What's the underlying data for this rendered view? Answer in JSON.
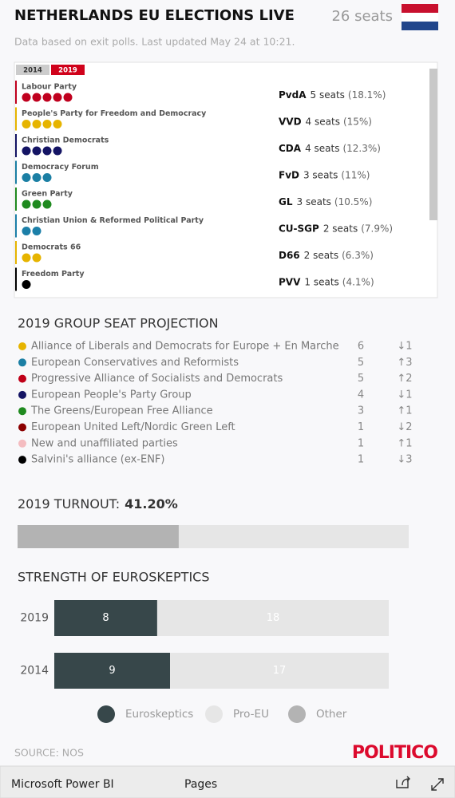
{
  "header": {
    "title": "NETHERLANDS EU ELECTIONS LIVE",
    "seats": "26 seats",
    "subtitle": "Data based on exit polls. Last updated May 24 at 10:21."
  },
  "tabs": [
    "2014",
    "2019"
  ],
  "parties": [
    {
      "name": "Labour Party",
      "abbr": "PvdA",
      "seats": 5,
      "seats_text": "5 seats",
      "share": "(18.1%)",
      "color": "#c0001e"
    },
    {
      "name": "People's Party for Freedom and Democracy",
      "abbr": "VVD",
      "seats": 4,
      "seats_text": "4 seats",
      "share": "(15%)",
      "color": "#e6b400"
    },
    {
      "name": "Christian Democrats",
      "abbr": "CDA",
      "seats": 4,
      "seats_text": "4 seats",
      "share": "(12.3%)",
      "color": "#141464"
    },
    {
      "name": "Democracy Forum",
      "abbr": "FvD",
      "seats": 3,
      "seats_text": "3 seats",
      "share": "(11%)",
      "color": "#1b7fa4"
    },
    {
      "name": "Green Party",
      "abbr": "GL",
      "seats": 3,
      "seats_text": "3 seats",
      "share": "(10.5%)",
      "color": "#1f8a1f"
    },
    {
      "name": "Christian Union & Reformed Political Party",
      "abbr": "CU-SGP",
      "seats": 2,
      "seats_text": "2 seats",
      "share": "(7.9%)",
      "color": "#1c7fa8"
    },
    {
      "name": "Democrats 66",
      "abbr": "D66",
      "seats": 2,
      "seats_text": "2 seats",
      "share": "(6.3%)",
      "color": "#e6b400"
    },
    {
      "name": "Freedom Party",
      "abbr": "PVV",
      "seats": 1,
      "seats_text": "1 seats",
      "share": "(4.1%)",
      "color": "#000000"
    }
  ],
  "projection": {
    "title": "2019 GROUP SEAT PROJECTION",
    "rows": [
      {
        "name": "Alliance of Liberals and Democrats for Europe + En Marche",
        "color": "#e6b400",
        "seats": 6,
        "change": "↓1"
      },
      {
        "name": "European Conservatives and Reformists",
        "color": "#1b7fa4",
        "seats": 5,
        "change": "↑3"
      },
      {
        "name": "Progressive Alliance of Socialists and Democrats",
        "color": "#c00018",
        "seats": 5,
        "change": "↑2"
      },
      {
        "name": "European People's Party Group",
        "color": "#141464",
        "seats": 4,
        "change": "↓1"
      },
      {
        "name": "The Greens/European Free Alliance",
        "color": "#1f8a1f",
        "seats": 3,
        "change": "↑1"
      },
      {
        "name": "European United Left/Nordic Green Left",
        "color": "#8b0000",
        "seats": 1,
        "change": "↓2"
      },
      {
        "name": "New and unaffiliated parties",
        "color": "#f4bcc0",
        "seats": 1,
        "change": "↑1"
      },
      {
        "name": "Salvini's alliance (ex-ENF)",
        "color": "#000000",
        "seats": 1,
        "change": "↓3"
      }
    ]
  },
  "turnout": {
    "title": "2019 TURNOUT:",
    "value": 41.2,
    "label": "41.20%",
    "xlim": [
      0,
      100
    ],
    "color": "#b3b3b3",
    "track": "#e6e6e6"
  },
  "chart_data": {
    "type": "stacked-bar-horizontal",
    "title": "STRENGTH OF EUROSKEPTICS",
    "categories": [
      "2019",
      "2014"
    ],
    "xlim": [
      0,
      26
    ],
    "series": [
      {
        "name": "Euroskeptics",
        "color": "#37474a",
        "values": [
          8,
          9
        ]
      },
      {
        "name": "Pro-EU",
        "color": "#e6e6e6",
        "values": [
          18,
          17
        ]
      },
      {
        "name": "Other",
        "color": "#b3b3b3",
        "values": [
          0,
          0
        ]
      }
    ]
  },
  "footer": {
    "source": "SOURCE: NOS",
    "brand": "POLITICO"
  },
  "toolbar": {
    "app": "Microsoft Power BI",
    "pages": "Pages"
  }
}
